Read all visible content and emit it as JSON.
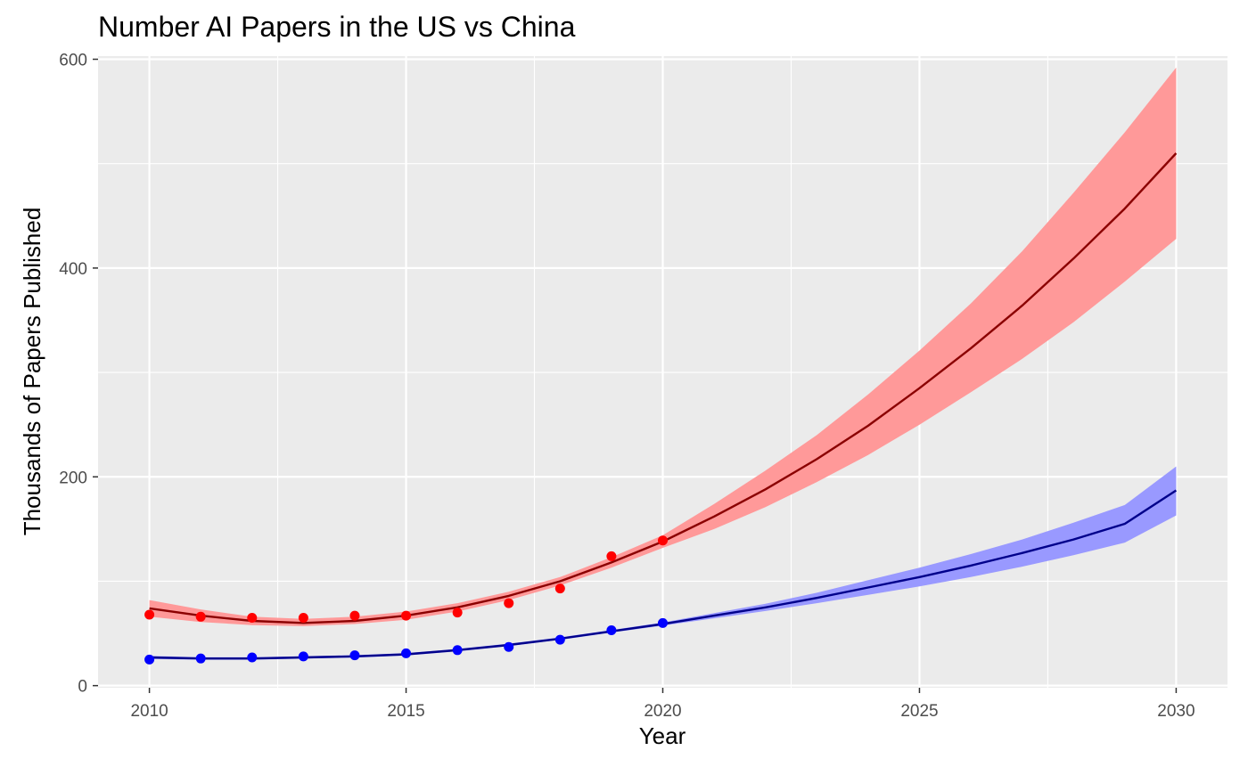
{
  "chart_data": {
    "type": "line",
    "title": "Number AI Papers in the US vs China",
    "xlabel": "Year",
    "ylabel": "Thousands of Papers Published",
    "xlim": [
      2009,
      2031
    ],
    "ylim": [
      -2,
      603
    ],
    "x_ticks": [
      2010,
      2015,
      2020,
      2025,
      2030
    ],
    "y_ticks": [
      0,
      200,
      400,
      600
    ],
    "grid": true,
    "legend": "none",
    "series": [
      {
        "name": "red",
        "point_color": "#ff0000",
        "line_color": "#8b0000",
        "band_color": "#ff9999",
        "points": {
          "x": [
            2010,
            2011,
            2012,
            2013,
            2014,
            2015,
            2016,
            2017,
            2018,
            2019,
            2020
          ],
          "y": [
            68,
            66,
            65,
            65,
            67,
            67,
            70,
            79,
            93,
            124,
            139
          ]
        },
        "fit": {
          "x": [
            2010,
            2011,
            2012,
            2013,
            2014,
            2015,
            2016,
            2017,
            2018,
            2019,
            2020,
            2021,
            2022,
            2023,
            2024,
            2025,
            2026,
            2027,
            2028,
            2029,
            2030
          ],
          "y": [
            74,
            67,
            62,
            60,
            62,
            67,
            75,
            86,
            100,
            118,
            138,
            162,
            188,
            217,
            249,
            285,
            323,
            364,
            409,
            457,
            510
          ],
          "lower": [
            66,
            61,
            58,
            57,
            59,
            63,
            71,
            82,
            96,
            113,
            132,
            150,
            171,
            195,
            221,
            250,
            281,
            313,
            348,
            387,
            428
          ],
          "upper": [
            82,
            73,
            66,
            64,
            66,
            71,
            79,
            90,
            104,
            123,
            144,
            174,
            206,
            240,
            279,
            321,
            366,
            416,
            472,
            530,
            592
          ]
        }
      },
      {
        "name": "blue",
        "point_color": "#0000ff",
        "line_color": "#00008b",
        "band_color": "#9999ff",
        "points": {
          "x": [
            2010,
            2011,
            2012,
            2013,
            2014,
            2015,
            2016,
            2017,
            2018,
            2019,
            2020
          ],
          "y": [
            25,
            26,
            27,
            28,
            29,
            31,
            34,
            37,
            44,
            53,
            60
          ]
        },
        "fit": {
          "x": [
            2010,
            2011,
            2012,
            2013,
            2014,
            2015,
            2016,
            2017,
            2018,
            2019,
            2020,
            2021,
            2022,
            2023,
            2024,
            2025,
            2026,
            2027,
            2028,
            2029,
            2030
          ],
          "y": [
            27,
            26,
            26,
            27,
            28,
            30,
            34,
            39,
            45,
            52,
            59,
            67,
            75,
            84,
            94,
            104,
            115,
            127,
            140,
            155,
            187
          ],
          "lower": [
            25.5,
            24.8,
            24.8,
            25.8,
            26.8,
            28.8,
            32.8,
            37.8,
            43.8,
            50.8,
            57.5,
            64.5,
            71.5,
            79,
            87,
            95,
            104,
            114,
            125,
            137,
            163
          ],
          "upper": [
            28.5,
            27.2,
            27.2,
            28.2,
            29.2,
            31.2,
            35.2,
            40.2,
            46.2,
            53.2,
            60.5,
            69.5,
            78.5,
            89,
            101,
            113,
            126,
            140,
            156,
            173,
            210
          ]
        }
      }
    ]
  }
}
